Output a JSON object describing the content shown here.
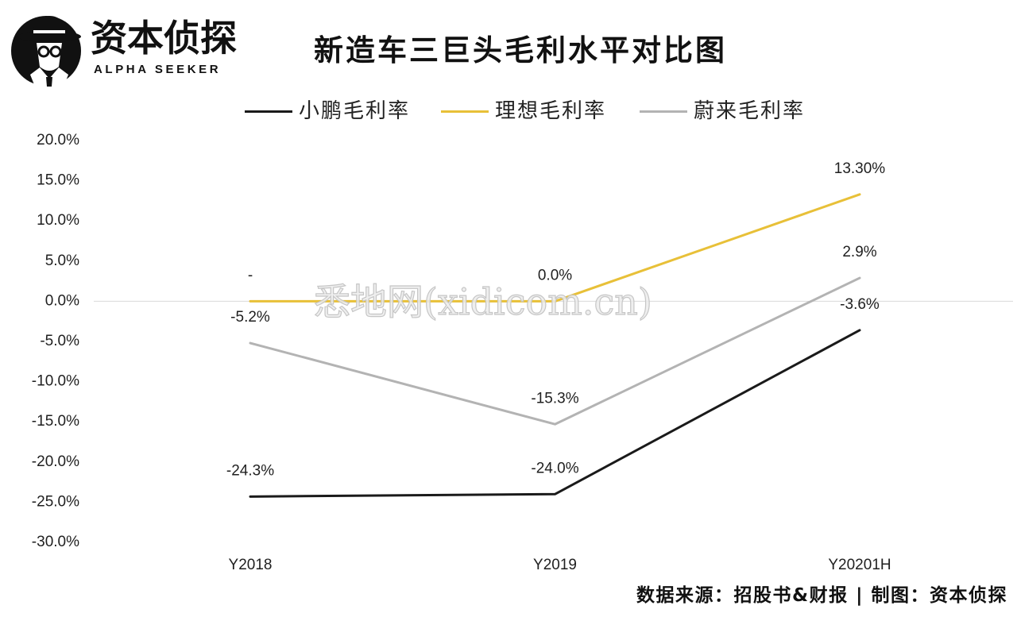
{
  "brand": {
    "name": "资本侦探",
    "tagline": "ALPHA SEEKER",
    "logo_icon": "detective-icon"
  },
  "watermark": "悉地网(xidicom.cn)",
  "footer": {
    "source": "数据来源：招股书&财报 | 制图：资本侦探"
  },
  "chart_data": {
    "type": "line",
    "title": "新造车三巨头毛利水平对比图",
    "categories": [
      "Y2018",
      "Y2019",
      "Y20201H"
    ],
    "ylim": [
      -30,
      20
    ],
    "yticks": [
      20,
      15,
      10,
      5,
      0,
      -5,
      -10,
      -15,
      -20,
      -25,
      -30
    ],
    "ytick_labels": [
      "20.0%",
      "15.0%",
      "10.0%",
      "5.0%",
      "0.0%",
      "-5.0%",
      "-10.0%",
      "-15.0%",
      "-20.0%",
      "-25.0%",
      "-30.0%"
    ],
    "grid": false,
    "zero_line": true,
    "legend_position": "top-center",
    "series": [
      {
        "name": "小鹏毛利率",
        "color": "#1a1a1a",
        "values": [
          -24.3,
          -24.0,
          -3.6
        ],
        "labels": [
          "-24.3%",
          "-24.0%",
          "-3.6%"
        ]
      },
      {
        "name": "理想毛利率",
        "color": "#e8c038",
        "values": [
          0,
          0,
          13.3
        ],
        "labels": [
          "-",
          "0.0%",
          "13.30%"
        ]
      },
      {
        "name": "蔚来毛利率",
        "color": "#b3b3b3",
        "values": [
          -5.2,
          -15.3,
          2.9
        ],
        "labels": [
          "-5.2%",
          "-15.3%",
          "2.9%"
        ]
      }
    ]
  }
}
